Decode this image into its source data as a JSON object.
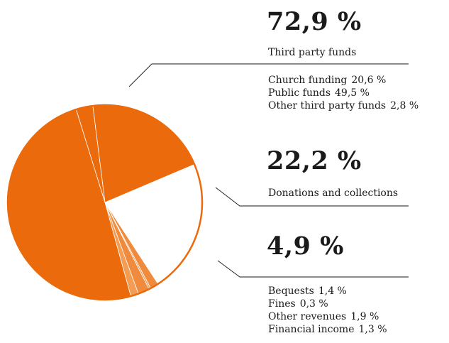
{
  "chart_data": {
    "type": "pie",
    "colors": {
      "primary": "#ea6a0c",
      "white": "#ffffff",
      "light1": "#f08a3c",
      "light2": "#f39c53",
      "light3": "#f08a3c",
      "light4": "#f39c53",
      "line": "#1a1a1a"
    },
    "slices": [
      {
        "name": "Donations and collections",
        "value": 22.2,
        "color": "white"
      },
      {
        "name": "Bequests",
        "value": 1.4,
        "color": "light1"
      },
      {
        "name": "Fines",
        "value": 0.3,
        "color": "light2"
      },
      {
        "name": "Other revenues",
        "value": 1.9,
        "color": "light3"
      },
      {
        "name": "Financial income",
        "value": 1.3,
        "color": "light4"
      },
      {
        "name": "Public funds",
        "value": 49.5,
        "color": "primary"
      },
      {
        "name": "Other third party funds",
        "value": 2.8,
        "color": "primary"
      },
      {
        "name": "Church funding",
        "value": 20.6,
        "color": "primary"
      }
    ],
    "groups": [
      {
        "percent": "72,9 %",
        "label": "Third party funds",
        "items": [
          {
            "name": "Church funding",
            "value": "20,6 %"
          },
          {
            "name": "Public funds",
            "value": "49,5 %"
          },
          {
            "name": "Other third party funds",
            "value": "2,8 %"
          }
        ]
      },
      {
        "percent": "22,2 %",
        "label": "Donations and collections",
        "items": []
      },
      {
        "percent": "4,9 %",
        "label": "",
        "items": [
          {
            "name": "Bequests",
            "value": "1,4 %"
          },
          {
            "name": "Fines",
            "value": "0,3 %"
          },
          {
            "name": "Other revenues",
            "value": "1,9 %"
          },
          {
            "name": "Financial income",
            "value": "1,3 %"
          }
        ]
      }
    ]
  }
}
